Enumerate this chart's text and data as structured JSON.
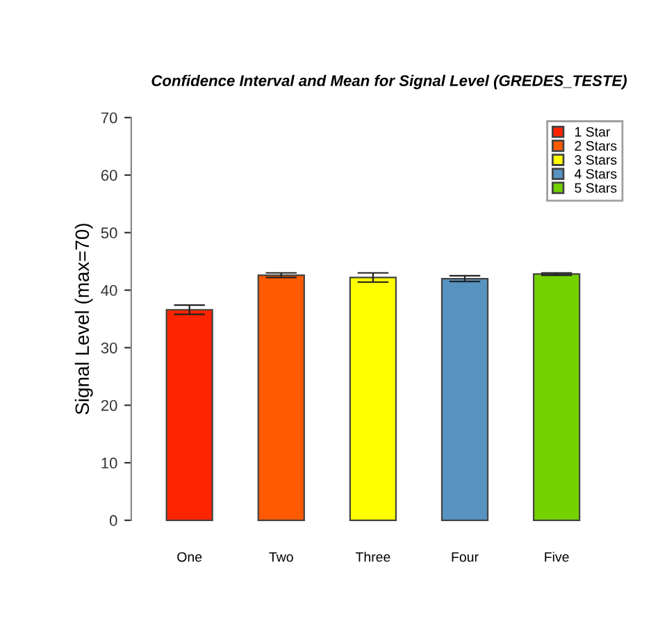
{
  "chart_data": {
    "type": "bar",
    "title": "Confidence Interval and Mean for Signal Level (GREDES_TESTE)",
    "ylabel": "Signal Level (max=70)",
    "categories": [
      "One",
      "Two",
      "Three",
      "Four",
      "Five"
    ],
    "series": [
      {
        "name": "1 Star",
        "color": "#ff2400",
        "values": [
          36.6,
          null,
          null,
          null,
          null
        ],
        "errors": [
          0.8,
          null,
          null,
          null,
          null
        ]
      },
      {
        "name": "2 Stars",
        "color": "#ff5a00",
        "values": [
          null,
          42.6,
          null,
          null,
          null
        ],
        "errors": [
          null,
          0.4,
          null,
          null,
          null
        ]
      },
      {
        "name": "3 Stars",
        "color": "#ffff00",
        "values": [
          null,
          null,
          42.2,
          null,
          null
        ],
        "errors": [
          null,
          null,
          0.8,
          null,
          null
        ]
      },
      {
        "name": "4 Stars",
        "color": "#5793c1",
        "values": [
          null,
          null,
          null,
          42.0,
          null
        ],
        "errors": [
          null,
          null,
          null,
          0.5,
          null
        ]
      },
      {
        "name": "5 Stars",
        "color": "#73d200",
        "values": [
          null,
          null,
          null,
          null,
          42.8
        ],
        "errors": [
          null,
          null,
          null,
          null,
          0.2
        ]
      }
    ],
    "ylim": [
      0,
      70
    ],
    "yticks": [
      0,
      10,
      20,
      30,
      40,
      50,
      60,
      70
    ],
    "legend": "top right",
    "grid": false
  }
}
